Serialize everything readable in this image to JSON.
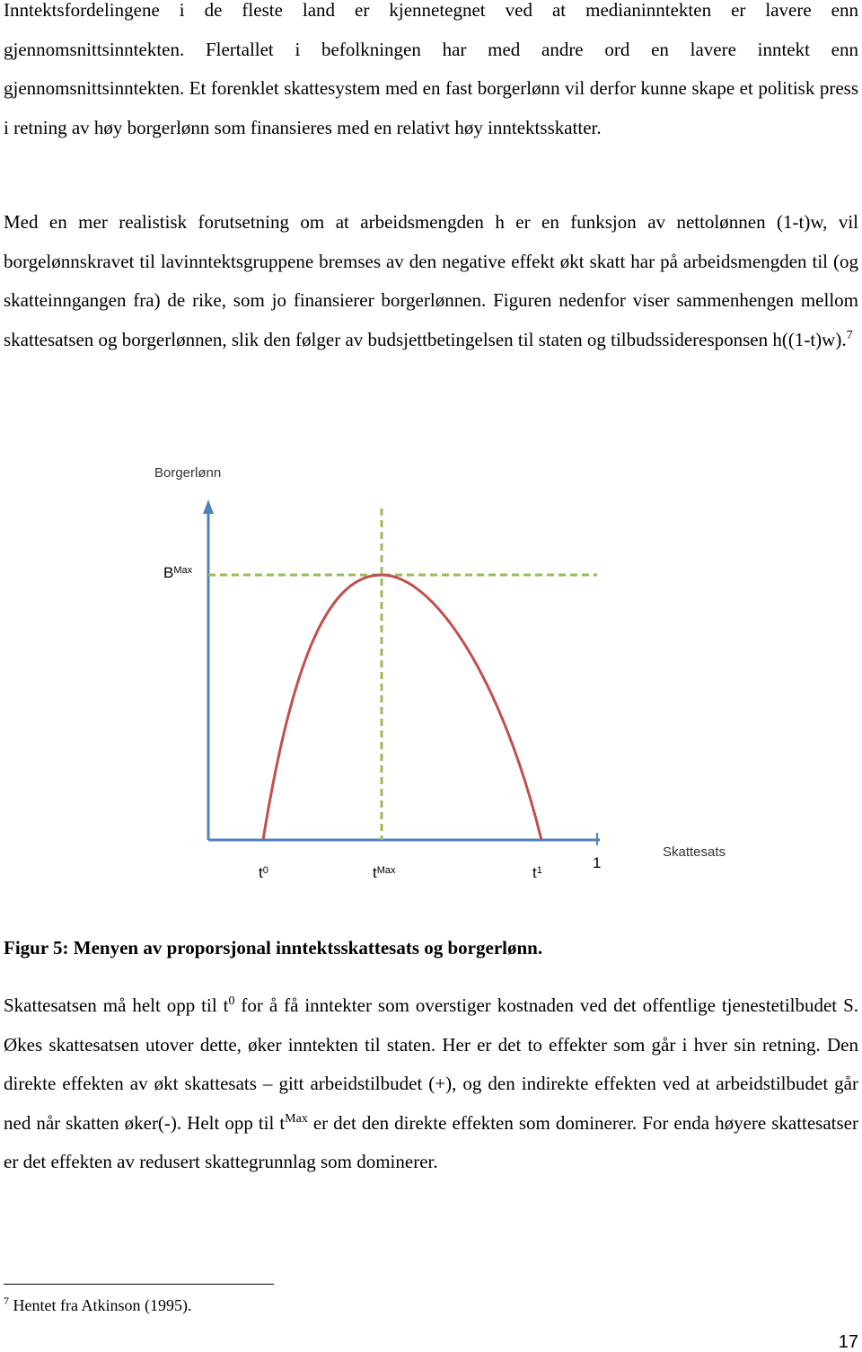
{
  "paragraph_1": "Inntektsfordelingene i de fleste land er kjennetegnet ved at medianinntekten er lavere enn gjennomsnittsinntekten. Flertallet i befolkningen har med andre ord en lavere inntekt enn gjennomsnittsinntekten. Et forenklet skattesystem med en fast borgerlønn vil derfor kunne skape et politisk press i retning av høy borgerlønn som finansieres med en relativt høy inntektsskatter.",
  "paragraph_2": {
    "text": "Med en mer realistisk forutsetning om at arbeidsmengden h er en funksjon av nettolønnen (1-t)w, vil borgelønnskravet til lavinntektsgruppene bremses av den negative effekt økt skatt har på arbeidsmengden til (og skatteinngangen fra) de rike, som jo finansierer borgerlønnen. Figuren nedenfor viser sammenhengen mellom skattesatsen og borgerlønnen, slik den følger av budsjettbetingelsen til staten og tilbudssideresponsen h((1-t)w).",
    "footnote_ref": "7"
  },
  "figure": {
    "y_axis_label": "Borgerlønn",
    "x_axis_label": "Skattesats",
    "b_max": {
      "base": "B",
      "sup": "Max"
    },
    "t0": {
      "base": "t",
      "sup": "0"
    },
    "t_max": {
      "base": "t",
      "sup": "Max"
    },
    "t1": {
      "base": "t",
      "sup": "1"
    },
    "one": "1"
  },
  "caption": "Figur 5: Menyen av proporsjonal inntektsskattesats og borgerlønn.",
  "paragraph_3": [
    "Skattesatsen må helt opp til t",
    "0",
    " for å få inntekter som overstiger kostnaden ved det offentlige tjenestetilbudet S. Økes skattesatsen utover dette, øker inntekten til staten. Her er det to effekter som går i hver sin retning. Den direkte effekten av økt skattesats – gitt arbeidstilbudet (+), og den indirekte effekten ved at arbeidstilbudet går ned når skatten øker(-). Helt opp til t",
    "Max",
    " er det den direkte effekten som dominerer. For enda høyere skattesatser er det effekten av redusert skattegrunnlag som dominerer."
  ],
  "footnote": {
    "number": "7",
    "text": " Hentet fra Atkinson (1995)."
  },
  "page_number": "17"
}
